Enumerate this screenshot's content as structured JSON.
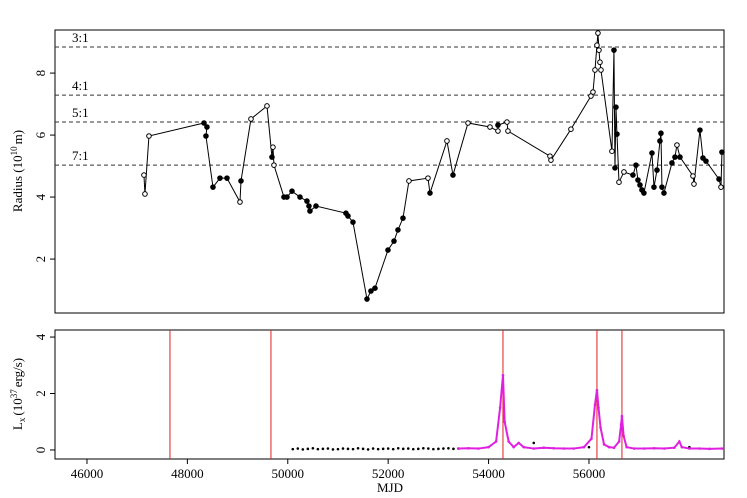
{
  "chart_data": [
    {
      "type": "line",
      "ylabel": [
        "Radius (10",
        "10",
        "m)"
      ],
      "xlim": [
        45363,
        58690
      ],
      "ylim": [
        0.26,
        9.39
      ],
      "yticks": [
        2,
        4,
        6,
        8
      ],
      "color": "#000000",
      "hlines": [
        {
          "value": 8.84,
          "label": "3:1"
        },
        {
          "value": 7.29,
          "label": "4:1"
        },
        {
          "value": 6.42,
          "label": "5:1"
        },
        {
          "value": 5.03,
          "label": "7:1"
        }
      ],
      "x": [
        47135,
        47155,
        47235,
        48331,
        48390,
        48370,
        48510,
        48649,
        48789,
        49048,
        49068,
        49267,
        49586,
        49685,
        49705,
        49725,
        49924,
        49984,
        50084,
        50243,
        50382,
        50422,
        50442,
        50562,
        51159,
        51199,
        51299,
        51578,
        51657,
        51737,
        51996,
        52116,
        52195,
        52295,
        52414,
        52793,
        52833,
        53171,
        53291,
        53590,
        54028,
        54187,
        54187,
        54367,
        54386,
        55223,
        55243,
        55641,
        56040,
        56080,
        56120,
        56159,
        56179,
        56199,
        56219,
        56239,
        56458,
        56498,
        56518,
        56538,
        56558,
        56598,
        56697,
        56876,
        56936,
        56976,
        57016,
        57055,
        57095,
        57255,
        57295,
        57355,
        57414,
        57434,
        57454,
        57494,
        57653,
        57713,
        57753,
        57813,
        58072,
        58092,
        58211,
        58271,
        58331,
        58590,
        58630,
        58649
      ],
      "values": [
        4.71,
        4.1,
        5.97,
        6.39,
        6.26,
        5.97,
        4.32,
        4.61,
        4.61,
        3.84,
        4.52,
        6.52,
        6.94,
        5.29,
        5.61,
        5.03,
        4.0,
        4.0,
        4.19,
        4.0,
        3.87,
        3.71,
        3.55,
        3.71,
        3.48,
        3.39,
        3.19,
        0.71,
        0.97,
        1.06,
        2.29,
        2.58,
        2.94,
        3.32,
        4.52,
        4.61,
        4.13,
        5.81,
        4.71,
        6.39,
        6.26,
        6.13,
        6.32,
        6.42,
        6.13,
        5.32,
        5.19,
        6.19,
        7.26,
        7.39,
        8.1,
        8.9,
        9.29,
        8.74,
        8.35,
        8.1,
        5.48,
        8.74,
        4.94,
        6.9,
        6.03,
        4.48,
        4.81,
        4.71,
        5.03,
        4.55,
        4.39,
        4.23,
        4.13,
        5.42,
        4.32,
        4.87,
        5.81,
        6.06,
        4.32,
        4.13,
        5.1,
        5.29,
        5.68,
        5.29,
        4.68,
        4.42,
        6.16,
        5.26,
        5.16,
        4.58,
        4.32,
        5.45
      ],
      "filled": [
        false,
        false,
        false,
        true,
        true,
        true,
        true,
        true,
        true,
        false,
        true,
        false,
        false,
        true,
        false,
        false,
        true,
        true,
        true,
        true,
        true,
        true,
        true,
        true,
        true,
        true,
        true,
        true,
        true,
        true,
        true,
        true,
        true,
        true,
        false,
        false,
        true,
        false,
        true,
        false,
        false,
        false,
        true,
        false,
        false,
        false,
        false,
        false,
        false,
        false,
        false,
        false,
        false,
        false,
        false,
        false,
        false,
        true,
        true,
        true,
        true,
        false,
        false,
        true,
        true,
        true,
        true,
        true,
        true,
        true,
        true,
        true,
        true,
        true,
        true,
        true,
        true,
        true,
        false,
        true,
        false,
        false,
        true,
        true,
        true,
        true,
        false,
        true
      ]
    },
    {
      "type": "scatter",
      "xlabel": "MJD",
      "ylabel": [
        "L",
        "x",
        "(10",
        "37",
        "erg/s)"
      ],
      "xlim": [
        45363,
        58690
      ],
      "ylim": [
        -0.32,
        4.25
      ],
      "xticks": [
        46000,
        48000,
        50000,
        52000,
        54000,
        56000
      ],
      "yticks": [
        0,
        2,
        4
      ],
      "vlines": [
        47653,
        49665,
        54287,
        56159,
        56657
      ],
      "vline_color": "#e02020",
      "series": [
        {
          "color": "#000000",
          "x": [
            50100,
            50200,
            50300,
            50400,
            50500,
            50600,
            50700,
            50800,
            50900,
            51000,
            51100,
            51200,
            51300,
            51400,
            51500,
            51600,
            51700,
            51800,
            51900,
            52000,
            52100,
            52200,
            52300,
            52400,
            52500,
            52600,
            52700,
            52800,
            52900,
            53000,
            53100,
            53200,
            53300,
            53400,
            54900,
            56000,
            58000
          ],
          "values": [
            0.03,
            0.05,
            0.02,
            0.04,
            0.06,
            0.03,
            0.04,
            0.05,
            0.02,
            0.03,
            0.05,
            0.04,
            0.03,
            0.06,
            0.04,
            0.02,
            0.05,
            0.03,
            0.04,
            0.05,
            0.03,
            0.06,
            0.04,
            0.05,
            0.03,
            0.04,
            0.06,
            0.05,
            0.03,
            0.04,
            0.05,
            0.06,
            0.04,
            0.05,
            0.25,
            0.1,
            0.1
          ]
        },
        {
          "color": "#e020e0",
          "x": [
            53400,
            53600,
            53800,
            54000,
            54150,
            54230,
            54287,
            54320,
            54400,
            54500,
            54600,
            54700,
            54900,
            55100,
            55300,
            55500,
            55700,
            55900,
            56050,
            56120,
            56159,
            56190,
            56230,
            56300,
            56400,
            56500,
            56600,
            56640,
            56657,
            56690,
            56750,
            56900,
            57100,
            57300,
            57500,
            57700,
            57800,
            57850,
            58000,
            58200,
            58400,
            58650
          ],
          "values": [
            0.05,
            0.06,
            0.05,
            0.1,
            0.3,
            1.5,
            2.65,
            1.0,
            0.3,
            0.1,
            0.25,
            0.1,
            0.05,
            0.08,
            0.06,
            0.05,
            0.05,
            0.1,
            0.4,
            1.6,
            2.12,
            1.5,
            0.8,
            0.2,
            0.1,
            0.08,
            0.3,
            0.9,
            1.2,
            0.5,
            0.1,
            0.05,
            0.05,
            0.06,
            0.05,
            0.08,
            0.3,
            0.1,
            0.05,
            0.05,
            0.04,
            0.05
          ]
        }
      ]
    }
  ]
}
